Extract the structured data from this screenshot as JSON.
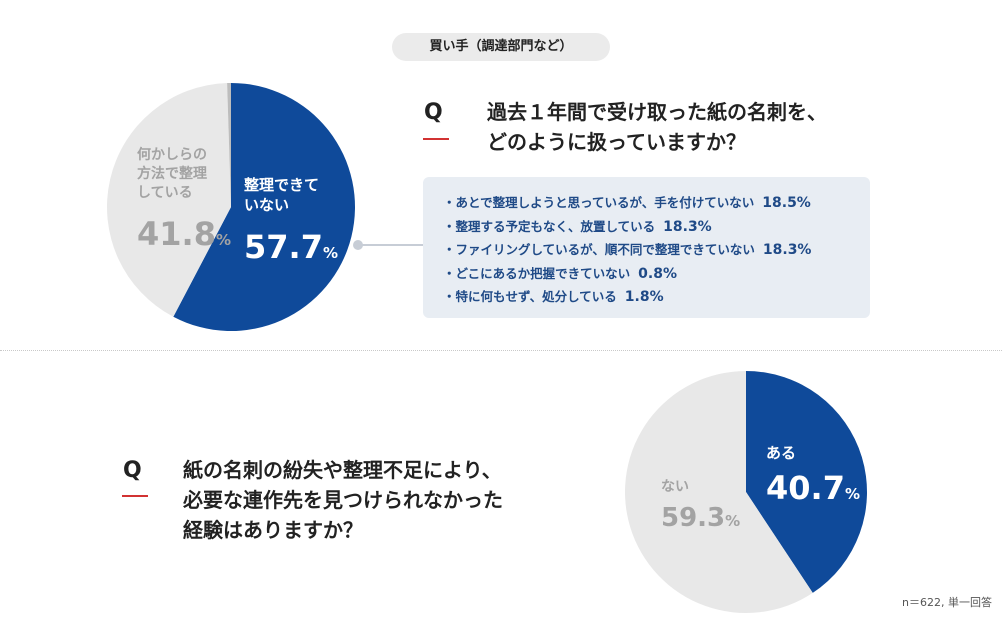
{
  "header": {
    "badge": "買い手（調達部門など）"
  },
  "colors": {
    "blue": "#0f4a9a",
    "gray": "#e8e8e8",
    "line": "#c7cdd6",
    "red": "#d23232",
    "text_gray": "#a3a3a3"
  },
  "q1": {
    "marker": "Q",
    "line1": "過去１年間で受け取った紙の名刺を、",
    "line2": "どのように扱っていますか？",
    "slices": {
      "gray": {
        "line1": "何かしらの",
        "line2": "方法で整理",
        "line3": "している",
        "value": "41.8",
        "unit": "%"
      },
      "blue": {
        "line1": "整理できて",
        "line2": "いない",
        "value": "57.7",
        "unit": "%"
      }
    },
    "breakdown": [
      {
        "label": "・あとで整理しようと思っているが、手を付けていない",
        "value": "18.5%"
      },
      {
        "label": "・整理する予定もなく、放置している",
        "value": "18.3%"
      },
      {
        "label": "・ファイリングしているが、順不同で整理できていない",
        "value": "18.3%"
      },
      {
        "label": "・どこにあるか把握できていない",
        "value": "0.8%"
      },
      {
        "label": "・特に何もせず、処分している",
        "value": "1.8%"
      }
    ]
  },
  "q2": {
    "marker": "Q",
    "line1": "紙の名刺の紛失や整理不足により、",
    "line2": "必要な連作先を見つけられなかった",
    "line3": "経験はありますか？",
    "slices": {
      "blue": {
        "line1": "ある",
        "value": "40.7",
        "unit": "%"
      },
      "gray": {
        "line1": "ない",
        "value": "59.3",
        "unit": "%"
      }
    }
  },
  "footnote": "n＝622, 単一回答",
  "chart_data": [
    {
      "type": "pie",
      "title": "過去１年間で受け取った紙の名刺を、どのように扱っていますか？",
      "labels": [
        "整理できていない",
        "何かしらの方法で整理している",
        "(unlabeled)"
      ],
      "values": [
        57.7,
        41.8,
        0.5
      ],
      "colors": [
        "#0f4a9a",
        "#e8e8e8",
        "#bdbdbd"
      ],
      "breakdown": {
        "labels": [
          "あとで整理しようと思っているが、手を付けていない",
          "整理する予定もなく、放置している",
          "ファイリングしているが、順不同で整理できていない",
          "どこにあるか把握できていない",
          "特に何もせず、処分している"
        ],
        "values": [
          18.5,
          18.3,
          18.3,
          0.8,
          1.8
        ]
      }
    },
    {
      "type": "pie",
      "title": "紙の名刺の紛失や整理不足により、必要な連作先を見つけられなかった経験はありますか？",
      "labels": [
        "ある",
        "ない"
      ],
      "values": [
        40.7,
        59.3
      ],
      "colors": [
        "#0f4a9a",
        "#e8e8e8"
      ]
    }
  ]
}
